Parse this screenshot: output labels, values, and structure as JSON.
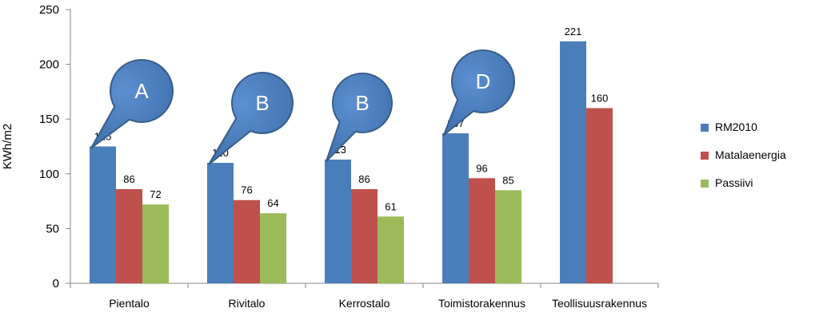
{
  "chart_data": {
    "type": "bar",
    "ylabel": "KWh/m2",
    "ylim": [
      0,
      250
    ],
    "yticks": [
      0,
      50,
      100,
      150,
      200,
      250
    ],
    "grid": false,
    "legend_position": "right",
    "categories": [
      "Pientalo",
      "Rivitalo",
      "Kerrostalo",
      "Toimistorakennus",
      "Teollisuusrakennus"
    ],
    "series": [
      {
        "name": "RM2010",
        "color": "#4a7ebb",
        "values": [
          125,
          110,
          113,
          137,
          221
        ]
      },
      {
        "name": "Matalaenergia",
        "color": "#c0504d",
        "values": [
          86,
          76,
          86,
          96,
          160
        ]
      },
      {
        "name": "Passiivi",
        "color": "#9bbb59",
        "values": [
          72,
          64,
          61,
          85,
          null
        ]
      }
    ],
    "callouts": [
      {
        "text": "A",
        "category": "Pientalo"
      },
      {
        "text": "B",
        "category": "Rivitalo"
      },
      {
        "text": "B",
        "category": "Kerrostalo"
      },
      {
        "text": "D",
        "category": "Toimistorakennus"
      }
    ],
    "callout_color": "#4f81bd",
    "callout_border": "#385d8a"
  }
}
